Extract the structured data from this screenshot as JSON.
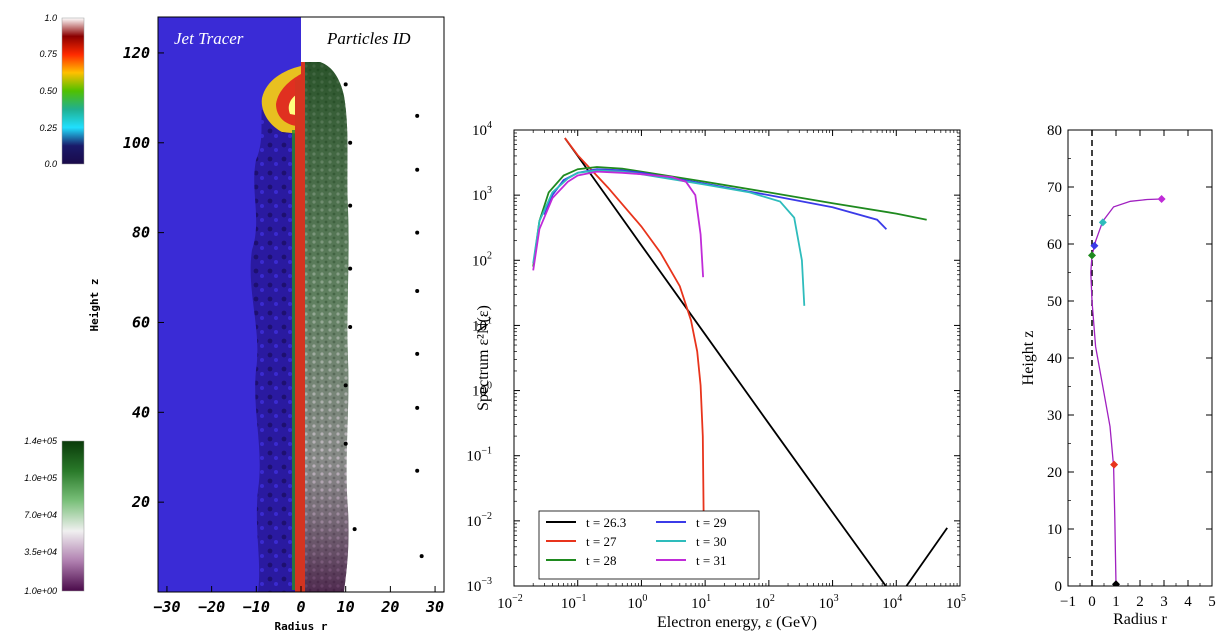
{
  "colors": {
    "jet_bg": "#3a2bd6",
    "tracer_line": "#d43420",
    "tracer_green": "#2a8a2a"
  },
  "colorbar_top": {
    "labels": [
      "1.0",
      "0.75",
      "0.50",
      "0.25",
      "0.0"
    ],
    "colors": [
      "#ffffff",
      "#8b0000",
      "#ff2a00",
      "#ffc000",
      "#50c000",
      "#20b090",
      "#20e0ff",
      "#1a1a6a",
      "#1a0a4a"
    ]
  },
  "colorbar_bottom": {
    "labels": [
      "1.4e+05",
      "1.0e+05",
      "7.0e+04",
      "3.5e+04",
      "1.0e+00"
    ],
    "colors": [
      "#0a3a0a",
      "#2a7a2a",
      "#7ac07a",
      "#f0f0f0",
      "#b080b0",
      "#4a0a4a"
    ]
  },
  "sim_panel": {
    "left_label": "Jet Tracer",
    "right_label": "Particles ID",
    "ylabel": "Height z",
    "xlabel": "Radius r",
    "yticks": [
      "120",
      "100",
      "80",
      "60",
      "40",
      "20"
    ],
    "xticks": [
      "−30",
      "−20",
      "−10",
      "0",
      "10",
      "20",
      "30"
    ],
    "particle_dots": [
      {
        "r": 10,
        "z": 113
      },
      {
        "r": 26,
        "z": 106
      },
      {
        "r": 11,
        "z": 100
      },
      {
        "r": 26,
        "z": 94
      },
      {
        "r": 11,
        "z": 86
      },
      {
        "r": 26,
        "z": 80
      },
      {
        "r": 11,
        "z": 72
      },
      {
        "r": 26,
        "z": 67
      },
      {
        "r": 11,
        "z": 59
      },
      {
        "r": 26,
        "z": 53
      },
      {
        "r": 10,
        "z": 46
      },
      {
        "r": 26,
        "z": 41
      },
      {
        "r": 10,
        "z": 33
      },
      {
        "r": 26,
        "z": 27
      },
      {
        "r": 12,
        "z": 14
      },
      {
        "r": 27,
        "z": 8
      }
    ]
  },
  "chart_data": [
    {
      "type": "line",
      "xlabel": "Electron energy, ε (GeV)",
      "ylabel": "Spectrum ε²N(ε)",
      "xscale": "log",
      "yscale": "log",
      "xlim": [
        0.01,
        100000
      ],
      "ylim": [
        0.001,
        10000
      ],
      "xticks": [
        {
          "v": 0.01,
          "base": "10",
          "exp": "−2"
        },
        {
          "v": 0.1,
          "base": "10",
          "exp": "−1"
        },
        {
          "v": 1,
          "base": "10",
          "exp": "0"
        },
        {
          "v": 10,
          "base": "10",
          "exp": "1"
        },
        {
          "v": 100,
          "base": "10",
          "exp": "2"
        },
        {
          "v": 1000,
          "base": "10",
          "exp": "3"
        },
        {
          "v": 10000,
          "base": "10",
          "exp": "4"
        },
        {
          "v": 100000,
          "base": "10",
          "exp": "5"
        }
      ],
      "yticks": [
        {
          "v": 0.001,
          "base": "10",
          "exp": "−3"
        },
        {
          "v": 0.01,
          "base": "10",
          "exp": "−2"
        },
        {
          "v": 0.1,
          "base": "10",
          "exp": "−1"
        },
        {
          "v": 1,
          "base": "10",
          "exp": "0"
        },
        {
          "v": 10,
          "base": "10",
          "exp": "1"
        },
        {
          "v": 100,
          "base": "10",
          "exp": "2"
        },
        {
          "v": 1000,
          "base": "10",
          "exp": "3"
        },
        {
          "v": 10000,
          "base": "10",
          "exp": "4"
        }
      ],
      "legend_position": "bottom-left",
      "series": [
        {
          "name": "t = 26.3",
          "color": "#000000",
          "points": [
            [
              0.063,
              7500
            ],
            [
              0.1,
              4000
            ],
            [
              1,
              170
            ],
            [
              10,
              7.3
            ],
            [
              100,
              0.31
            ],
            [
              1000,
              0.0135
            ],
            [
              10000,
              0.0006
            ],
            [
              63000,
              0.0078
            ]
          ]
        },
        {
          "name": "t = 27",
          "color": "#e8341c",
          "points": [
            [
              0.063,
              7500
            ],
            [
              0.1,
              4100
            ],
            [
              0.3,
              1300
            ],
            [
              1,
              330
            ],
            [
              2,
              130
            ],
            [
              4,
              40
            ],
            [
              6,
              12
            ],
            [
              7.5,
              4
            ],
            [
              8.5,
              1.2
            ],
            [
              9.2,
              0.2
            ],
            [
              9.5,
              0.01
            ]
          ]
        },
        {
          "name": "t = 28",
          "color": "#1f8a1f",
          "points": [
            [
              0.02,
              80
            ],
            [
              0.025,
              400
            ],
            [
              0.035,
              1100
            ],
            [
              0.06,
              2000
            ],
            [
              0.1,
              2500
            ],
            [
              0.2,
              2700
            ],
            [
              0.5,
              2550
            ],
            [
              1,
              2300
            ],
            [
              10,
              1600
            ],
            [
              100,
              1100
            ],
            [
              1000,
              750
            ],
            [
              10000,
              520
            ],
            [
              30000,
              420
            ]
          ]
        },
        {
          "name": "t = 29",
          "color": "#3b3be8",
          "points": [
            [
              0.03,
              500
            ],
            [
              0.04,
              1000
            ],
            [
              0.06,
              1700
            ],
            [
              0.1,
              2200
            ],
            [
              0.2,
              2500
            ],
            [
              0.5,
              2400
            ],
            [
              1,
              2200
            ],
            [
              10,
              1500
            ],
            [
              100,
              1000
            ],
            [
              1000,
              650
            ],
            [
              5000,
              420
            ],
            [
              7000,
              300
            ]
          ]
        },
        {
          "name": "t = 30",
          "color": "#2ebcbc",
          "points": [
            [
              0.02,
              90
            ],
            [
              0.025,
              400
            ],
            [
              0.04,
              1100
            ],
            [
              0.07,
              1800
            ],
            [
              0.1,
              2200
            ],
            [
              0.2,
              2400
            ],
            [
              0.5,
              2300
            ],
            [
              1,
              2100
            ],
            [
              10,
              1450
            ],
            [
              50,
              1100
            ],
            [
              150,
              800
            ],
            [
              250,
              450
            ],
            [
              330,
              100
            ],
            [
              360,
              20
            ]
          ]
        },
        {
          "name": "t = 31",
          "color": "#c02bd8",
          "points": [
            [
              0.02,
              70
            ],
            [
              0.025,
              300
            ],
            [
              0.04,
              900
            ],
            [
              0.07,
              1600
            ],
            [
              0.1,
              2000
            ],
            [
              0.2,
              2300
            ],
            [
              0.5,
              2200
            ],
            [
              1,
              2100
            ],
            [
              3,
              1900
            ],
            [
              5,
              1600
            ],
            [
              7,
              1000
            ],
            [
              8.5,
              250
            ],
            [
              9.3,
              55
            ]
          ]
        }
      ]
    },
    {
      "type": "line",
      "xlabel": "Radius r",
      "ylabel": "Height z",
      "xlim": [
        -1,
        5
      ],
      "ylim": [
        0,
        80
      ],
      "xticks": [
        "−1",
        "0",
        "1",
        "2",
        "3",
        "4",
        "5"
      ],
      "yticks": [
        "0",
        "10",
        "20",
        "30",
        "40",
        "50",
        "60",
        "70",
        "80"
      ],
      "trajectory_color": "#a020c0",
      "trajectory": [
        [
          1.0,
          0.3
        ],
        [
          0.98,
          5
        ],
        [
          0.95,
          12
        ],
        [
          0.9,
          21
        ],
        [
          0.75,
          28
        ],
        [
          0.45,
          35
        ],
        [
          0.15,
          42
        ],
        [
          0.0,
          50
        ],
        [
          -0.05,
          55
        ],
        [
          0.0,
          58
        ],
        [
          0.15,
          60.5
        ],
        [
          0.45,
          64
        ],
        [
          0.9,
          66.5
        ],
        [
          1.6,
          67.5
        ],
        [
          2.3,
          67.8
        ],
        [
          2.9,
          67.9
        ]
      ],
      "markers": [
        {
          "x": 1.0,
          "y": 0.3,
          "color": "#000000"
        },
        {
          "x": 0.92,
          "y": 21.3,
          "color": "#e8341c"
        },
        {
          "x": 0.0,
          "y": 58.0,
          "color": "#1f8a1f"
        },
        {
          "x": 0.1,
          "y": 59.7,
          "color": "#3b3be8"
        },
        {
          "x": 0.45,
          "y": 63.8,
          "color": "#2ebcbc"
        },
        {
          "x": 2.9,
          "y": 67.9,
          "color": "#c02bd8"
        }
      ],
      "dashed_line_x": 0
    }
  ]
}
